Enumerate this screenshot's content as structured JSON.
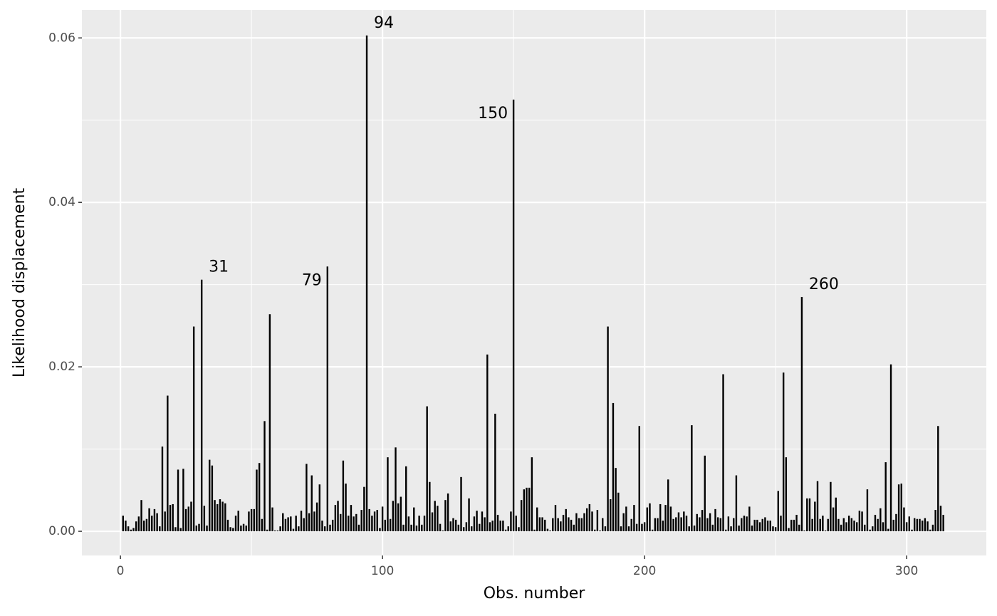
{
  "chart_data": {
    "type": "bar",
    "x_label": "Obs. number",
    "y_label": "Likelihood displacement",
    "x": [
      1,
      2,
      3,
      4,
      5,
      6,
      7,
      8,
      9,
      10,
      11,
      12,
      13,
      14,
      15,
      16,
      17,
      18,
      19,
      20,
      21,
      22,
      23,
      24,
      25,
      26,
      27,
      28,
      29,
      30,
      31,
      32,
      33,
      34,
      35,
      36,
      37,
      38,
      39,
      40,
      41,
      42,
      43,
      44,
      45,
      46,
      47,
      48,
      49,
      50,
      51,
      52,
      53,
      54,
      55,
      56,
      57,
      58,
      59,
      60,
      61,
      62,
      63,
      64,
      65,
      66,
      67,
      68,
      69,
      70,
      71,
      72,
      73,
      74,
      75,
      76,
      77,
      78,
      79,
      80,
      81,
      82,
      83,
      84,
      85,
      86,
      87,
      88,
      89,
      90,
      91,
      92,
      93,
      94,
      95,
      96,
      97,
      98,
      99,
      100,
      101,
      102,
      103,
      104,
      105,
      106,
      107,
      108,
      109,
      110,
      111,
      112,
      113,
      114,
      115,
      116,
      117,
      118,
      119,
      120,
      121,
      122,
      123,
      124,
      125,
      126,
      127,
      128,
      129,
      130,
      131,
      132,
      133,
      134,
      135,
      136,
      137,
      138,
      139,
      140,
      141,
      142,
      143,
      144,
      145,
      146,
      147,
      148,
      149,
      150,
      151,
      152,
      153,
      154,
      155,
      156,
      157,
      158,
      159,
      160,
      161,
      162,
      163,
      164,
      165,
      166,
      167,
      168,
      169,
      170,
      171,
      172,
      173,
      174,
      175,
      176,
      177,
      178,
      179,
      180,
      181,
      182,
      183,
      184,
      185,
      186,
      187,
      188,
      189,
      190,
      191,
      192,
      193,
      194,
      195,
      196,
      197,
      198,
      199,
      200,
      201,
      202,
      203,
      204,
      205,
      206,
      207,
      208,
      209,
      210,
      211,
      212,
      213,
      214,
      215,
      216,
      217,
      218,
      219,
      220,
      221,
      222,
      223,
      224,
      225,
      226,
      227,
      228,
      229,
      230,
      231,
      232,
      233,
      234,
      235,
      236,
      237,
      238,
      239,
      240,
      241,
      242,
      243,
      244,
      245,
      246,
      247,
      248,
      249,
      250,
      251,
      252,
      253,
      254,
      255,
      256,
      257,
      258,
      259,
      260,
      261,
      262,
      263,
      264,
      265,
      266,
      267,
      268,
      269,
      270,
      271,
      272,
      273,
      274,
      275,
      276,
      277,
      278,
      279,
      280,
      281,
      282,
      283,
      284,
      285,
      286,
      287,
      288,
      289,
      290,
      291,
      292,
      293,
      294,
      295,
      296,
      297,
      298,
      299,
      300,
      301,
      302,
      303,
      304,
      305,
      306,
      307,
      308,
      309,
      310,
      311,
      312,
      313,
      314
    ],
    "values": [
      0.0019,
      0.0013,
      0.0006,
      0.0002,
      0.0004,
      0.0012,
      0.0018,
      0.0038,
      0.0013,
      0.0015,
      0.0028,
      0.0019,
      0.0027,
      0.0022,
      0.0006,
      0.0103,
      0.0024,
      0.0165,
      0.0032,
      0.0033,
      0.0005,
      0.0075,
      0.0004,
      0.0076,
      0.0027,
      0.003,
      0.0036,
      0.0249,
      0.0007,
      0.0009,
      0.0306,
      0.0031,
      0.0007,
      0.0087,
      0.008,
      0.0038,
      0.0033,
      0.0039,
      0.0036,
      0.0034,
      0.0014,
      0.0005,
      0.0004,
      0.0019,
      0.0025,
      0.0007,
      0.0009,
      0.0007,
      0.0024,
      0.0027,
      0.0027,
      0.0075,
      0.0083,
      0.0015,
      0.0134,
      0.0002,
      0.0264,
      0.0029,
      0.0001,
      0.0001,
      0.0006,
      0.0022,
      0.0015,
      0.0017,
      0.0018,
      0.0003,
      0.0019,
      0.0006,
      0.0025,
      0.0016,
      0.0082,
      0.0022,
      0.0068,
      0.0024,
      0.0035,
      0.0057,
      0.0013,
      0.0006,
      0.0322,
      0.0008,
      0.0014,
      0.0032,
      0.0037,
      0.0021,
      0.0086,
      0.0058,
      0.0019,
      0.0032,
      0.0018,
      0.0021,
      0.0008,
      0.0026,
      0.0054,
      0.0603,
      0.0027,
      0.0019,
      0.0024,
      0.0026,
      0.0004,
      0.003,
      0.0014,
      0.009,
      0.0015,
      0.0037,
      0.0102,
      0.0034,
      0.0042,
      0.0008,
      0.0079,
      0.0018,
      0.0008,
      0.0029,
      0.0007,
      0.0019,
      0.0008,
      0.0019,
      0.0152,
      0.006,
      0.0023,
      0.0037,
      0.0031,
      0.0009,
      0.0001,
      0.0038,
      0.0046,
      0.0012,
      0.0016,
      0.0014,
      0.0008,
      0.0066,
      0.0005,
      0.0011,
      0.004,
      0.0006,
      0.0018,
      0.0025,
      0.0009,
      0.0024,
      0.0017,
      0.0215,
      0.0011,
      0.0013,
      0.0143,
      0.002,
      0.0013,
      0.0013,
      0.0002,
      0.0006,
      0.0024,
      0.0525,
      0.0019,
      0.0005,
      0.0038,
      0.0051,
      0.0053,
      0.0053,
      0.009,
      0.0002,
      0.0029,
      0.0017,
      0.0017,
      0.0014,
      0.0003,
      0.0001,
      0.0016,
      0.0032,
      0.0016,
      0.0012,
      0.002,
      0.0027,
      0.0017,
      0.0014,
      0.0008,
      0.0022,
      0.0016,
      0.0016,
      0.0022,
      0.0028,
      0.0033,
      0.0024,
      0.0002,
      0.0026,
      0.0001,
      0.0016,
      0.0006,
      0.0249,
      0.0039,
      0.0156,
      0.0077,
      0.0047,
      0.0006,
      0.0022,
      0.003,
      0.0006,
      0.0015,
      0.0032,
      0.0009,
      0.0128,
      0.0009,
      0.0011,
      0.0029,
      0.0034,
      0.0002,
      0.0016,
      0.0016,
      0.0033,
      0.0013,
      0.0032,
      0.0063,
      0.003,
      0.0015,
      0.0017,
      0.0023,
      0.0017,
      0.0024,
      0.0019,
      0.0006,
      0.0129,
      0.0007,
      0.0021,
      0.0017,
      0.0026,
      0.0092,
      0.0016,
      0.0022,
      0.0008,
      0.0027,
      0.0017,
      0.0016,
      0.0191,
      0.0002,
      0.0018,
      0.0006,
      0.0016,
      0.0068,
      0.0007,
      0.0016,
      0.0019,
      0.0018,
      0.003,
      0.0007,
      0.0014,
      0.0014,
      0.0011,
      0.0015,
      0.0017,
      0.0013,
      0.0013,
      0.0006,
      0.0005,
      0.0049,
      0.0019,
      0.0193,
      0.009,
      0.0004,
      0.0014,
      0.0014,
      0.002,
      0.0008,
      0.0285,
      0.0001,
      0.004,
      0.004,
      0.0015,
      0.0036,
      0.0061,
      0.0015,
      0.0019,
      0.0001,
      0.0015,
      0.006,
      0.0029,
      0.0041,
      0.0015,
      0.0008,
      0.0016,
      0.0011,
      0.0019,
      0.0016,
      0.0013,
      0.0011,
      0.0025,
      0.0024,
      0.0008,
      0.0051,
      0.0002,
      0.0006,
      0.002,
      0.0015,
      0.0028,
      0.0011,
      0.0084,
      0.0003,
      0.0203,
      0.0014,
      0.0021,
      0.0057,
      0.0058,
      0.0029,
      0.0011,
      0.0018,
      0.0002,
      0.0016,
      0.0015,
      0.0015,
      0.0013,
      0.0016,
      0.0012,
      0.0002,
      0.0008,
      0.0026,
      0.0128,
      0.0031,
      0.002
    ],
    "color": "#000000",
    "annotations": [
      "31",
      "79",
      "94",
      "150",
      "260"
    ],
    "xlim": [
      -14.7,
      330.4
    ],
    "xticks": [
      0,
      100,
      200,
      300
    ],
    "xminor": [
      50,
      150,
      250
    ],
    "ylim": [
      -0.00294,
      0.0634
    ],
    "yticks": [
      {
        "value": 0,
        "label": "0.00"
      },
      0.02,
      0.04,
      0.06
    ],
    "yminor": [
      0.01,
      0.03,
      0.05
    ],
    "grid": true
  }
}
